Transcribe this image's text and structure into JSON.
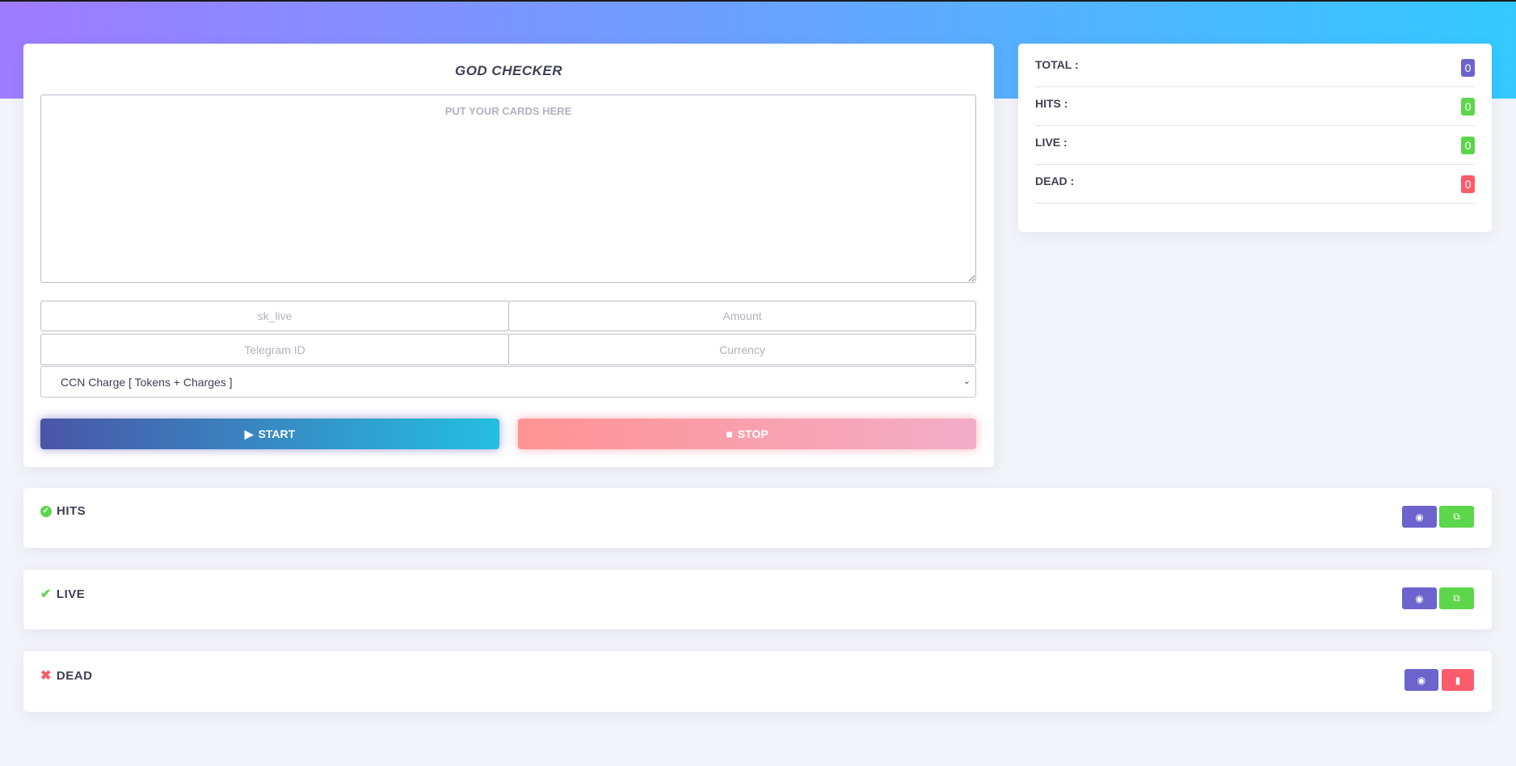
{
  "colors": {
    "header_gradient": [
      "#9f7bff",
      "#33c9ff"
    ],
    "primary": "#6c63cc",
    "success": "#5cd64a",
    "danger": "#fa5c6c"
  },
  "checker": {
    "title": "GOD CHECKER",
    "cards_placeholder": "PUT YOUR CARDS HERE",
    "sk_placeholder": "sk_live",
    "amount_placeholder": "Amount",
    "telegram_placeholder": "Telegram ID",
    "currency_placeholder": "Currency",
    "gate_selected": "CCN Charge [ Tokens + Charges ]",
    "start_label": "START",
    "stop_label": "STOP"
  },
  "stats": [
    {
      "label": "TOTAL :",
      "value": "0",
      "color": "#6c63cc"
    },
    {
      "label": "HITS :",
      "value": "0",
      "color": "#5cd64a"
    },
    {
      "label": "LIVE :",
      "value": "0",
      "color": "#5cd64a"
    },
    {
      "label": "DEAD :",
      "value": "0",
      "color": "#fa5c6c"
    }
  ],
  "sections": [
    {
      "title": "HITS",
      "icon": "check-circle-icon",
      "action": "copy-icon"
    },
    {
      "title": "LIVE",
      "icon": "check-icon",
      "action": "copy-icon"
    },
    {
      "title": "DEAD",
      "icon": "x-icon",
      "action": "trash-icon"
    }
  ]
}
